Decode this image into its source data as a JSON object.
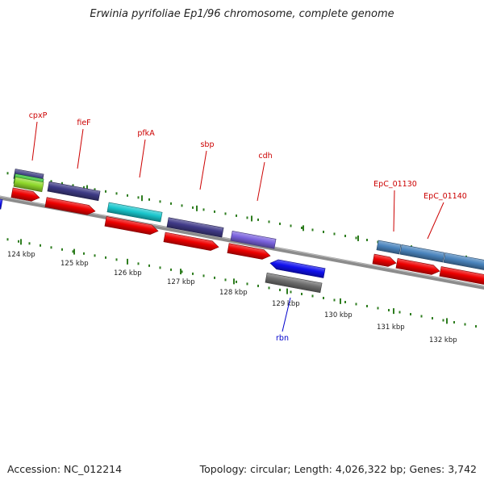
{
  "title": "Erwinia pyrifoliae Ep1/96 chromosome, complete genome",
  "footer": {
    "accession": "Accession: NC_012214",
    "topology": "Topology: circular; Length: 4,026,322 bp; Genes: 3,742"
  },
  "colors": {
    "backbone": "#8c8c8c",
    "tick": "#2e7d1f",
    "forward_label": "#cc0000",
    "reverse_label": "#0000cc",
    "tick_label": "#222222",
    "red_feature": "#ee0000",
    "blue_feature": "#1010ee",
    "gray_feature": "#6e6e6e"
  },
  "scale_labels": [
    "124 kbp",
    "125 kbp",
    "126 kbp",
    "127 kbp",
    "128 kbp",
    "129 kbp",
    "130 kbp",
    "131 kbp",
    "132 kbp"
  ],
  "gene_labels": [
    {
      "text": "cpxP",
      "strand": "forward"
    },
    {
      "text": "fieF",
      "strand": "forward"
    },
    {
      "text": "pfkA",
      "strand": "forward"
    },
    {
      "text": "sbp",
      "strand": "forward"
    },
    {
      "text": "cdh",
      "strand": "forward"
    },
    {
      "text": "EpC_01130",
      "strand": "forward"
    },
    {
      "text": "EpC_01140",
      "strand": "forward"
    },
    {
      "text": "rbn",
      "strand": "reverse"
    }
  ]
}
